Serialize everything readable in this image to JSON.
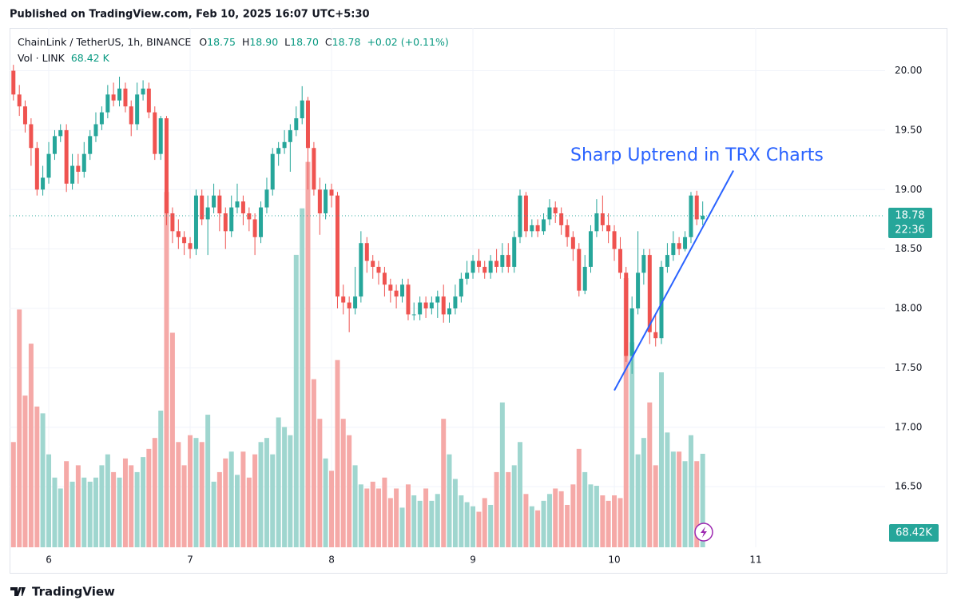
{
  "header": {
    "published": "Published on TradingView.com, Feb 10, 2025 16:07 UTC+5:30"
  },
  "chart_data": {
    "type": "candlestick",
    "symbol": "ChainLink / TetherUS, 1h, BINANCE",
    "ohlc_legend": [
      {
        "key": "O",
        "value": 18.75
      },
      {
        "key": "H",
        "value": {
          "value": 18.9,
          "label": "18.90"
        }
      },
      {
        "key": "L",
        "value": {
          "value": 18.7,
          "label": "18.70"
        }
      },
      {
        "key": "C",
        "value": 18.78
      }
    ],
    "change": {
      "value": 0.02,
      "label": "+0.02"
    },
    "change_percent": {
      "value": 0.11,
      "label": "(+0.11%)"
    },
    "volume_title": "Vol · LINK",
    "volume_legend": {
      "value": 68.42,
      "label": "68.42 K"
    },
    "annotation": "Sharp Uptrend in TRX Charts",
    "x": [
      5.75,
      5.792,
      5.833,
      5.875,
      5.917,
      5.958,
      6,
      6.042,
      6.083,
      6.125,
      6.167,
      6.208,
      6.25,
      6.292,
      6.333,
      6.375,
      6.417,
      6.458,
      6.5,
      6.542,
      6.583,
      6.625,
      6.667,
      6.708,
      6.75,
      6.792,
      6.833,
      6.875,
      6.917,
      6.958,
      7,
      7.042,
      7.083,
      7.125,
      7.167,
      7.208,
      7.25,
      7.292,
      7.333,
      7.375,
      7.417,
      7.458,
      7.5,
      7.542,
      7.583,
      7.625,
      7.667,
      7.708,
      7.75,
      7.792,
      7.833,
      7.875,
      7.917,
      7.958,
      8,
      8.042,
      8.083,
      8.125,
      8.167,
      8.208,
      8.25,
      8.292,
      8.333,
      8.375,
      8.417,
      8.458,
      8.5,
      8.542,
      8.583,
      8.625,
      8.667,
      8.708,
      8.75,
      8.792,
      8.833,
      8.875,
      8.917,
      8.958,
      9,
      9.042,
      9.083,
      9.125,
      9.167,
      9.208,
      9.25,
      9.292,
      9.333,
      9.375,
      9.417,
      9.458,
      9.5,
      9.542,
      9.583,
      9.625,
      9.667,
      9.708,
      9.75,
      9.792,
      9.833,
      9.875,
      9.917,
      9.958,
      10,
      10.042,
      10.083,
      10.125,
      10.167,
      10.208,
      10.25,
      10.292,
      10.333,
      10.375,
      10.417,
      10.458,
      10.5,
      10.542,
      10.583,
      10.625
    ],
    "open": [
      20.0,
      19.8,
      19.7,
      19.55,
      19.35,
      19.0,
      19.1,
      19.3,
      19.45,
      19.5,
      19.05,
      19.2,
      19.15,
      19.3,
      19.45,
      19.55,
      19.65,
      19.8,
      19.75,
      19.85,
      19.7,
      19.55,
      19.8,
      19.85,
      19.65,
      19.3,
      19.6,
      18.8,
      18.65,
      18.6,
      18.55,
      18.5,
      18.95,
      18.75,
      18.85,
      18.95,
      18.8,
      18.65,
      18.85,
      18.9,
      18.8,
      18.75,
      18.6,
      18.85,
      19.0,
      19.3,
      19.35,
      19.4,
      19.5,
      19.6,
      19.75,
      19.35,
      19.0,
      18.8,
      19.0,
      18.95,
      18.1,
      18.05,
      18.0,
      18.1,
      18.55,
      18.4,
      18.35,
      18.3,
      18.2,
      18.15,
      18.1,
      18.2,
      17.95,
      17.95,
      18.05,
      18.0,
      18.05,
      18.1,
      17.95,
      18.0,
      18.1,
      18.25,
      18.3,
      18.4,
      18.35,
      18.3,
      18.4,
      18.35,
      18.45,
      18.35,
      18.6,
      18.95,
      18.65,
      18.7,
      18.65,
      18.75,
      18.85,
      18.8,
      18.7,
      18.6,
      18.5,
      18.15,
      18.35,
      18.65,
      18.8,
      18.7,
      18.65,
      18.5,
      18.3,
      17.6,
      18.0,
      18.3,
      18.45,
      17.8,
      17.75,
      18.35,
      18.45,
      18.55,
      18.5,
      18.6,
      18.95,
      18.75
    ],
    "high": [
      20.05,
      19.88,
      19.75,
      19.6,
      19.4,
      19.2,
      19.4,
      19.5,
      19.55,
      19.55,
      19.3,
      19.3,
      19.4,
      19.5,
      19.65,
      19.7,
      19.88,
      19.9,
      19.95,
      19.9,
      19.75,
      19.9,
      19.92,
      19.9,
      19.7,
      19.62,
      19.62,
      18.85,
      18.75,
      18.65,
      18.6,
      19.0,
      19.0,
      18.95,
      19.05,
      19.0,
      18.85,
      18.95,
      19.05,
      18.95,
      18.85,
      18.8,
      18.9,
      19.1,
      19.35,
      19.4,
      19.5,
      19.55,
      19.7,
      19.87,
      19.78,
      19.4,
      19.1,
      19.05,
      19.05,
      18.98,
      18.2,
      18.1,
      18.35,
      18.65,
      18.6,
      18.45,
      18.4,
      18.35,
      18.25,
      18.2,
      18.25,
      18.25,
      18.05,
      18.1,
      18.1,
      18.1,
      18.15,
      18.2,
      18.05,
      18.2,
      18.3,
      18.4,
      18.45,
      18.5,
      18.4,
      18.45,
      18.5,
      18.55,
      18.55,
      18.65,
      19.0,
      18.98,
      18.75,
      18.75,
      18.8,
      18.92,
      18.9,
      18.85,
      18.75,
      18.65,
      18.55,
      18.45,
      18.7,
      18.92,
      18.95,
      18.8,
      18.7,
      18.6,
      18.35,
      18.1,
      18.65,
      18.5,
      18.5,
      17.95,
      18.4,
      18.55,
      18.65,
      18.6,
      18.65,
      18.98,
      18.99,
      18.9
    ],
    "low": [
      19.75,
      19.62,
      19.48,
      19.2,
      18.95,
      18.95,
      19.05,
      19.25,
      19.4,
      18.98,
      19.0,
      19.05,
      19.1,
      19.25,
      19.4,
      19.5,
      19.6,
      19.7,
      19.7,
      19.65,
      19.45,
      19.5,
      19.75,
      19.6,
      19.25,
      19.25,
      18.7,
      18.55,
      18.5,
      18.45,
      18.42,
      18.45,
      18.7,
      18.45,
      18.8,
      18.65,
      18.5,
      18.6,
      18.8,
      18.7,
      18.65,
      18.45,
      18.55,
      18.8,
      18.95,
      19.2,
      19.3,
      19.15,
      19.45,
      19.55,
      19.0,
      18.95,
      18.62,
      18.75,
      18.85,
      18.0,
      17.95,
      17.8,
      17.95,
      18.05,
      18.3,
      18.25,
      18.2,
      18.1,
      18.05,
      18.0,
      18.05,
      17.9,
      17.9,
      17.9,
      17.92,
      17.95,
      17.92,
      17.88,
      17.88,
      17.95,
      18.05,
      18.2,
      18.25,
      18.3,
      18.25,
      18.25,
      18.3,
      18.3,
      18.3,
      18.3,
      18.55,
      18.6,
      18.6,
      18.6,
      18.62,
      18.7,
      18.72,
      18.62,
      18.52,
      18.4,
      18.1,
      18.12,
      18.3,
      18.6,
      18.65,
      18.55,
      18.4,
      18.25,
      17.55,
      17.45,
      17.95,
      18.2,
      17.7,
      17.68,
      17.7,
      18.3,
      18.4,
      18.45,
      18.48,
      18.55,
      18.7,
      18.7
    ],
    "close": [
      19.8,
      19.7,
      19.55,
      19.35,
      19.0,
      19.1,
      19.3,
      19.45,
      19.5,
      19.05,
      19.2,
      19.15,
      19.3,
      19.45,
      19.55,
      19.65,
      19.8,
      19.75,
      19.85,
      19.7,
      19.55,
      19.8,
      19.85,
      19.65,
      19.3,
      19.6,
      18.8,
      18.65,
      18.6,
      18.55,
      18.5,
      18.95,
      18.75,
      18.85,
      18.95,
      18.8,
      18.65,
      18.85,
      18.9,
      18.8,
      18.75,
      18.6,
      18.85,
      19.0,
      19.3,
      19.35,
      19.4,
      19.5,
      19.6,
      19.75,
      19.35,
      19.0,
      18.8,
      19.0,
      18.95,
      18.1,
      18.05,
      18.0,
      18.1,
      18.55,
      18.4,
      18.35,
      18.3,
      18.2,
      18.15,
      18.1,
      18.2,
      17.95,
      17.95,
      18.05,
      18.0,
      18.05,
      18.1,
      17.95,
      18.0,
      18.1,
      18.25,
      18.3,
      18.4,
      18.35,
      18.3,
      18.4,
      18.35,
      18.45,
      18.35,
      18.6,
      18.95,
      18.65,
      18.7,
      18.65,
      18.75,
      18.85,
      18.8,
      18.7,
      18.6,
      18.5,
      18.15,
      18.35,
      18.65,
      18.8,
      18.7,
      18.65,
      18.5,
      18.3,
      17.6,
      18.0,
      18.3,
      18.45,
      17.8,
      17.75,
      18.35,
      18.45,
      18.55,
      18.5,
      18.6,
      18.95,
      18.75,
      18.78
    ],
    "volume": [
      77,
      174,
      111,
      149,
      103,
      98,
      68,
      51,
      43,
      63,
      48,
      60,
      51,
      48,
      51,
      60,
      68,
      55,
      51,
      65,
      60,
      55,
      66,
      72,
      80,
      100,
      260,
      157,
      77,
      60,
      82,
      80,
      77,
      97,
      48,
      55,
      65,
      70,
      53,
      70,
      51,
      68,
      77,
      80,
      68,
      95,
      88,
      82,
      214,
      248,
      282,
      123,
      94,
      65,
      56,
      137,
      94,
      82,
      60,
      46,
      43,
      48,
      43,
      51,
      36,
      43,
      29,
      46,
      38,
      34,
      43,
      34,
      39,
      94,
      68,
      50,
      38,
      33,
      30,
      26,
      36,
      31,
      55,
      106,
      55,
      60,
      77,
      39,
      30,
      27,
      34,
      39,
      43,
      41,
      31,
      46,
      72,
      55,
      46,
      45,
      38,
      34,
      38,
      36,
      197,
      150,
      68,
      80,
      106,
      60,
      128,
      84,
      70,
      70,
      63,
      82,
      63,
      68.42
    ],
    "up_color": "#26a69a",
    "down_color": "#ef5350",
    "volume_up_color": "#9fd6cf",
    "volume_down_color": "#f5a9a7",
    "xlim": [
      5.723,
      11.915
    ],
    "xticks": [
      6,
      7,
      8,
      9,
      10,
      11
    ],
    "ylim": [
      15.99,
      20.36
    ],
    "yticks": [
      {
        "value": 16.5,
        "label": "16.50"
      },
      {
        "value": 17,
        "label": "17.00"
      },
      {
        "value": 17.5,
        "label": "17.50"
      },
      {
        "value": 18,
        "label": "18.00"
      },
      {
        "value": 18.5,
        "label": "18.50"
      },
      {
        "value": 19,
        "label": "19.00"
      },
      {
        "value": 19.5,
        "label": "19.50"
      },
      {
        "value": 20,
        "label": "20.00"
      }
    ],
    "vlim": [
      0,
      380
    ],
    "grid": true,
    "last_price": 18.78,
    "countdown": "22:36",
    "volume_badge": {
      "value": 68.42,
      "label": "68.42K"
    },
    "trendline": {
      "x": [
        10,
        10.842
      ],
      "y": [
        17.31,
        19.16
      ],
      "color": "#2962ff"
    }
  },
  "footer": {
    "brand": "TradingView"
  }
}
